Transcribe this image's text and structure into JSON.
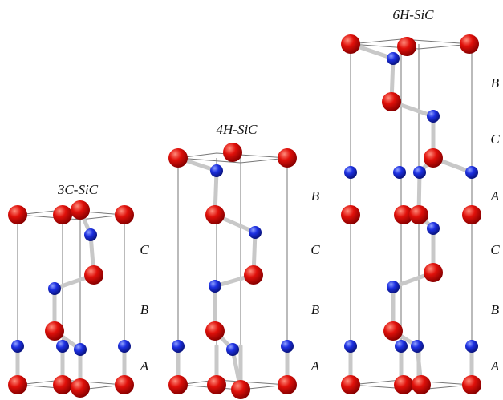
{
  "structures": [
    {
      "label": "3C-SiC",
      "layers": [
        "C",
        "B",
        "A"
      ]
    },
    {
      "label": "4H-SiC",
      "layers": [
        "B",
        "C",
        "B",
        "A"
      ]
    },
    {
      "label": "6H-SiC",
      "layers": [
        "B",
        "C",
        "A",
        "C",
        "B",
        "A"
      ]
    }
  ]
}
